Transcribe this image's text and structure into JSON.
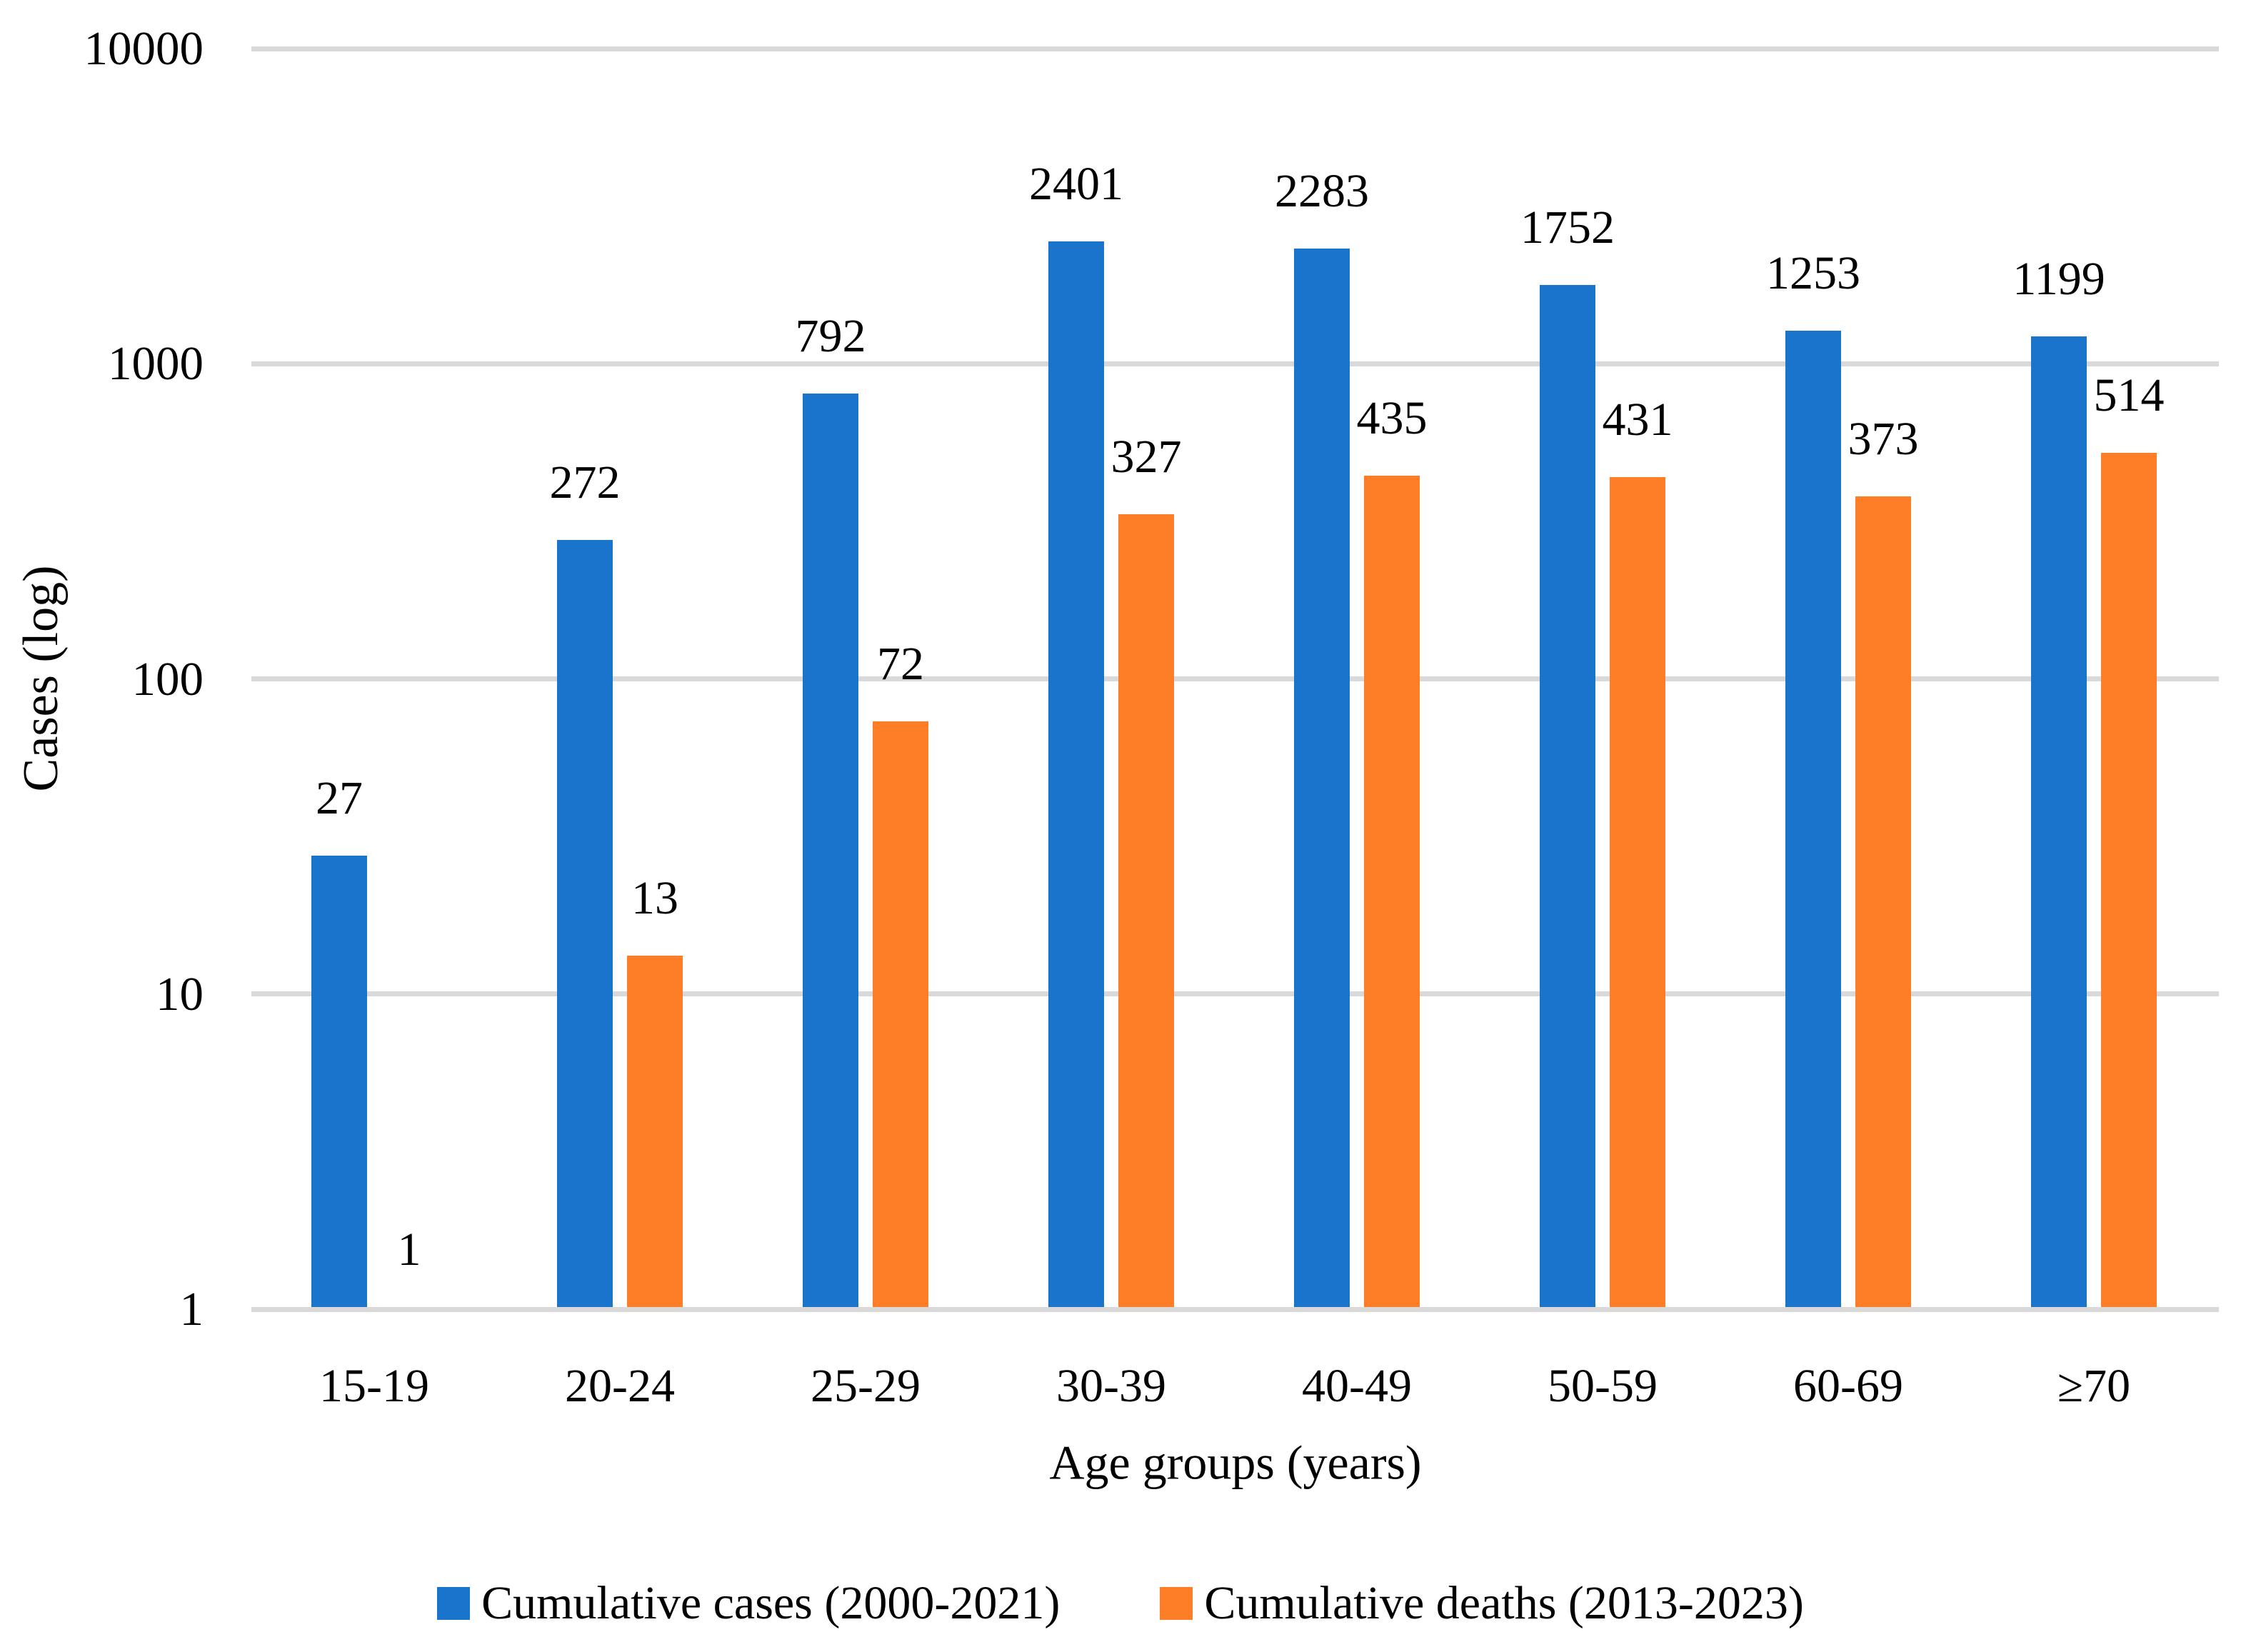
{
  "chart_data": {
    "type": "bar",
    "scale": "log",
    "xlabel": "Age groups (years)",
    "ylabel": "Cases (log)",
    "categories": [
      "15-19",
      "20-24",
      "25-29",
      "30-39",
      "40-49",
      "50-59",
      "60-69",
      "≥70"
    ],
    "series": [
      {
        "name": "Cumulative cases (2000-2021)",
        "color": "#1B74CB",
        "values": [
          27,
          272,
          792,
          2401,
          2283,
          1752,
          1253,
          1199
        ]
      },
      {
        "name": "Cumulative deaths (2013-2023)",
        "color": "#FD7E26",
        "values": [
          1,
          13,
          72,
          327,
          435,
          431,
          373,
          514
        ]
      }
    ],
    "yticks": [
      10000,
      1000,
      100,
      10,
      1
    ],
    "ylim": [
      1,
      10000
    ],
    "grid": "horizontal",
    "gridline_color": "#D9D9D9",
    "axis_line_color": "#D9D9D9",
    "label_color": "#000000",
    "legend_position": "bottom",
    "data_labels": true
  }
}
